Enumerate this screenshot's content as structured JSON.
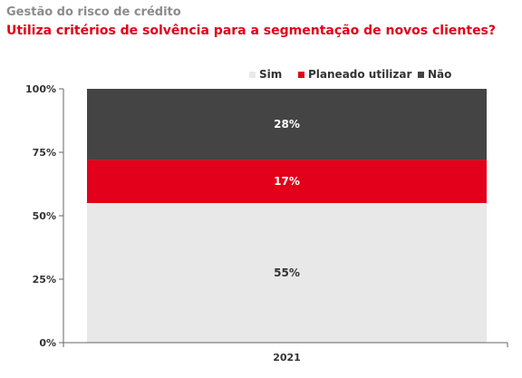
{
  "header": {
    "title": "Gestão do risco de crédito",
    "subtitle": "Utiliza critérios de solvência para a segmentação de novos clientes?"
  },
  "chart_data": {
    "type": "bar",
    "stacked": true,
    "categories": [
      "2021"
    ],
    "series": [
      {
        "name": "Sim",
        "values": [
          55
        ],
        "color": "#e8e8e8",
        "label_color": "#333333",
        "labels": [
          "55%"
        ]
      },
      {
        "name": "Planeado utilizar",
        "values": [
          17
        ],
        "color": "#e2001a",
        "label_color": "#ffffff",
        "labels": [
          "17%"
        ]
      },
      {
        "name": "Não",
        "values": [
          28
        ],
        "color": "#444444",
        "label_color": "#ffffff",
        "labels": [
          "28%"
        ]
      }
    ],
    "ylim": [
      0,
      100
    ],
    "yticks": [
      "0%",
      "25%",
      "50%",
      "75%",
      "100%"
    ],
    "legend_position": "top-right",
    "grid": false
  }
}
